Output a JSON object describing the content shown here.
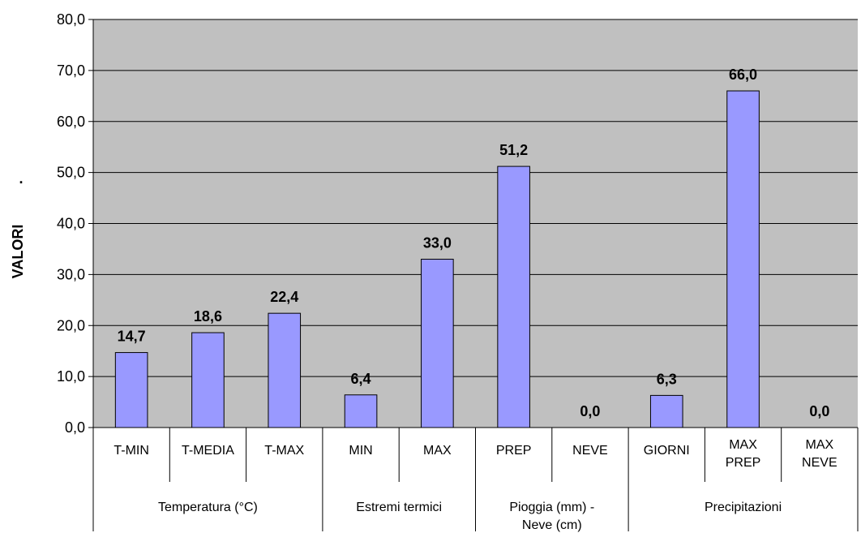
{
  "chart_data": {
    "type": "bar",
    "ylabel": "VALORI",
    "ylabel_prefix": ".",
    "ylim": [
      0,
      80
    ],
    "ytick_step": 10,
    "ytick_labels": [
      "0,0",
      "10,0",
      "20,0",
      "30,0",
      "40,0",
      "50,0",
      "60,0",
      "70,0",
      "80,0"
    ],
    "grid": true,
    "legend": "none",
    "categories": [
      {
        "label": [
          "T-MIN"
        ],
        "value": 14.7,
        "value_label": "14,7"
      },
      {
        "label": [
          "T-MEDIA"
        ],
        "value": 18.6,
        "value_label": "18,6"
      },
      {
        "label": [
          "T-MAX"
        ],
        "value": 22.4,
        "value_label": "22,4"
      },
      {
        "label": [
          "MIN"
        ],
        "value": 6.4,
        "value_label": "6,4"
      },
      {
        "label": [
          "MAX"
        ],
        "value": 33.0,
        "value_label": "33,0"
      },
      {
        "label": [
          "PREP"
        ],
        "value": 51.2,
        "value_label": "51,2"
      },
      {
        "label": [
          "NEVE"
        ],
        "value": 0.0,
        "value_label": "0,0"
      },
      {
        "label": [
          "GIORNI"
        ],
        "value": 6.3,
        "value_label": "6,3"
      },
      {
        "label": [
          "MAX",
          "PREP"
        ],
        "value": 66.0,
        "value_label": "66,0"
      },
      {
        "label": [
          "MAX",
          "NEVE"
        ],
        "value": 0.0,
        "value_label": "0,0"
      }
    ],
    "groups": [
      {
        "label": [
          "Temperatura (°C)"
        ],
        "span": 3
      },
      {
        "label": [
          "Estremi termici"
        ],
        "span": 2
      },
      {
        "label": [
          "Pioggia (mm) -",
          "Neve (cm)"
        ],
        "span": 2
      },
      {
        "label": [
          "Precipitazioni"
        ],
        "span": 3
      }
    ],
    "colors": {
      "plot_bg": "#C0C0C0",
      "bar_fill": "#9999FF",
      "bar_stroke": "#000000",
      "grid": "#000000"
    }
  }
}
